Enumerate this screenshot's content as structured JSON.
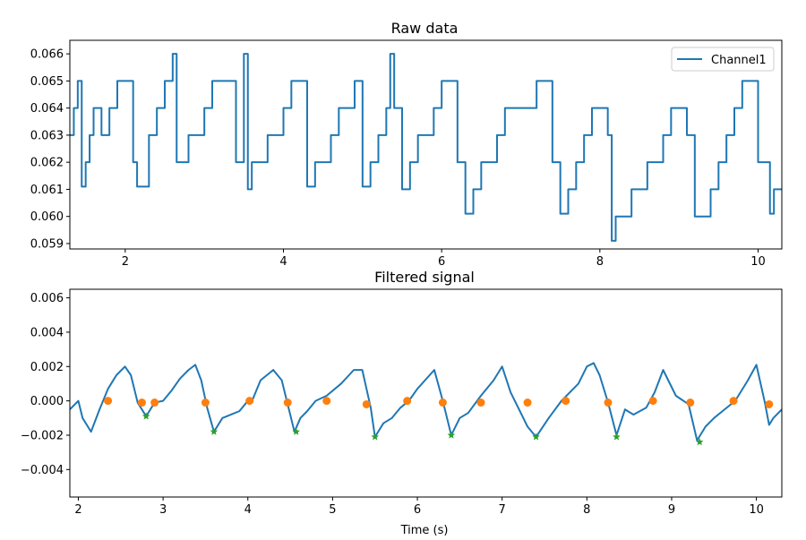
{
  "chart_data": [
    {
      "type": "line",
      "title": "Raw data",
      "xlabel": "",
      "ylabel": "",
      "xlim": [
        1.3,
        10.3
      ],
      "ylim": [
        0.0588,
        0.0665
      ],
      "xticks": [
        2,
        4,
        6,
        8,
        10
      ],
      "yticks": [
        0.059,
        0.06,
        0.061,
        0.062,
        0.063,
        0.064,
        0.065,
        0.066
      ],
      "ytick_labels": [
        "0.059",
        "0.060",
        "0.061",
        "0.062",
        "0.063",
        "0.064",
        "0.065",
        "0.066"
      ],
      "grid": false,
      "legend": "top-right",
      "series": [
        {
          "name": "Channel1",
          "color": "#1f77b4",
          "x": [
            1.3,
            1.35,
            1.4,
            1.45,
            1.5,
            1.55,
            1.6,
            1.7,
            1.8,
            1.9,
            2.0,
            2.1,
            2.15,
            2.3,
            2.4,
            2.5,
            2.55,
            2.6,
            2.65,
            2.7,
            2.8,
            2.9,
            3.0,
            3.1,
            3.2,
            3.3,
            3.4,
            3.5,
            3.55,
            3.6,
            3.7,
            3.8,
            3.9,
            4.0,
            4.1,
            4.2,
            4.3,
            4.4,
            4.5,
            4.6,
            4.7,
            4.8,
            4.9,
            5.0,
            5.1,
            5.2,
            5.3,
            5.35,
            5.4,
            5.5,
            5.6,
            5.7,
            5.8,
            5.9,
            6.0,
            6.1,
            6.2,
            6.3,
            6.4,
            6.5,
            6.6,
            6.7,
            6.8,
            6.9,
            7.0,
            7.1,
            7.2,
            7.3,
            7.4,
            7.5,
            7.6,
            7.7,
            7.8,
            7.9,
            8.0,
            8.1,
            8.15,
            8.2,
            8.3,
            8.4,
            8.5,
            8.6,
            8.7,
            8.8,
            8.9,
            9.0,
            9.1,
            9.2,
            9.3,
            9.4,
            9.5,
            9.6,
            9.7,
            9.8,
            9.9,
            10.0,
            10.1,
            10.15,
            10.2,
            10.3
          ],
          "y": [
            0.063,
            0.064,
            0.065,
            0.0611,
            0.062,
            0.063,
            0.064,
            0.063,
            0.064,
            0.065,
            0.065,
            0.062,
            0.0611,
            0.063,
            0.064,
            0.065,
            0.065,
            0.066,
            0.062,
            0.062,
            0.063,
            0.063,
            0.064,
            0.065,
            0.065,
            0.065,
            0.062,
            0.066,
            0.061,
            0.062,
            0.062,
            0.063,
            0.063,
            0.064,
            0.065,
            0.065,
            0.0611,
            0.062,
            0.062,
            0.063,
            0.064,
            0.064,
            0.065,
            0.0611,
            0.062,
            0.063,
            0.064,
            0.066,
            0.064,
            0.061,
            0.062,
            0.063,
            0.063,
            0.064,
            0.065,
            0.065,
            0.062,
            0.0601,
            0.061,
            0.062,
            0.062,
            0.063,
            0.064,
            0.064,
            0.064,
            0.064,
            0.065,
            0.065,
            0.062,
            0.0601,
            0.061,
            0.062,
            0.063,
            0.064,
            0.064,
            0.063,
            0.0591,
            0.06,
            0.06,
            0.061,
            0.061,
            0.062,
            0.062,
            0.063,
            0.064,
            0.064,
            0.063,
            0.06,
            0.06,
            0.061,
            0.062,
            0.063,
            0.064,
            0.065,
            0.065,
            0.062,
            0.062,
            0.0601,
            0.061,
            0.061
          ]
        }
      ]
    },
    {
      "type": "line",
      "title": "Filtered signal",
      "xlabel": "Time (s)",
      "ylabel": "",
      "xlim": [
        1.9,
        10.3
      ],
      "ylim": [
        -0.0056,
        0.0065
      ],
      "xticks": [
        2,
        3,
        4,
        5,
        6,
        7,
        8,
        9,
        10
      ],
      "yticks": [
        -0.004,
        -0.002,
        0.0,
        0.002,
        0.004,
        0.006
      ],
      "ytick_labels": [
        "−0.004",
        "−0.002",
        "0.000",
        "0.002",
        "0.004",
        "0.006"
      ],
      "grid": false,
      "legend": "none",
      "series": [
        {
          "color": "#1f77b4",
          "x": [
            1.9,
            2.0,
            2.05,
            2.15,
            2.25,
            2.35,
            2.45,
            2.55,
            2.62,
            2.7,
            2.75,
            2.8,
            2.9,
            3.0,
            3.1,
            3.2,
            3.3,
            3.38,
            3.45,
            3.52,
            3.6,
            3.7,
            3.8,
            3.9,
            4.0,
            4.05,
            4.15,
            4.3,
            4.4,
            4.47,
            4.55,
            4.62,
            4.7,
            4.8,
            4.93,
            5.1,
            5.25,
            5.35,
            5.45,
            5.5,
            5.6,
            5.7,
            5.8,
            5.9,
            6.0,
            6.2,
            6.3,
            6.4,
            6.5,
            6.6,
            6.75,
            6.9,
            7.0,
            7.1,
            7.2,
            7.3,
            7.4,
            7.55,
            7.7,
            7.9,
            8.0,
            8.08,
            8.15,
            8.25,
            8.35,
            8.45,
            8.55,
            8.7,
            8.8,
            8.9,
            9.05,
            9.2,
            9.3,
            9.4,
            9.5,
            9.6,
            9.75,
            9.9,
            10.0,
            10.1,
            10.15,
            10.2,
            10.3
          ],
          "y": [
            -0.0005,
            0.0,
            -0.001,
            -0.0018,
            -0.0005,
            0.0007,
            0.0015,
            0.002,
            0.0015,
            -0.0001,
            -0.0005,
            -0.0009,
            -0.0001,
            0.0,
            0.0006,
            0.0013,
            0.0018,
            0.0021,
            0.0012,
            -0.0004,
            -0.0018,
            -0.001,
            -0.0008,
            -0.0006,
            0.0,
            0.0,
            0.0012,
            0.0018,
            0.0012,
            -0.0002,
            -0.0018,
            -0.001,
            -0.0006,
            0.0,
            0.0003,
            0.001,
            0.0018,
            0.0018,
            -0.0004,
            -0.0021,
            -0.0013,
            -0.001,
            -0.0004,
            0.0,
            0.0007,
            0.0018,
            0.0,
            -0.002,
            -0.001,
            -0.0007,
            0.0003,
            0.0012,
            0.002,
            0.0005,
            -0.0005,
            -0.0015,
            -0.0021,
            -0.001,
            0.0,
            0.001,
            0.002,
            0.0022,
            0.0015,
            -0.0001,
            -0.002,
            -0.0005,
            -0.0008,
            -0.0004,
            0.0005,
            0.0018,
            0.0003,
            -0.0002,
            -0.0023,
            -0.0015,
            -0.001,
            -0.0006,
            0.0,
            0.0012,
            0.0021,
            -0.0001,
            -0.0014,
            -0.001,
            -0.0005
          ]
        },
        {
          "marker": "circle",
          "color": "#ff7f0e",
          "x": [
            2.35,
            2.75,
            2.9,
            3.5,
            4.02,
            4.47,
            4.93,
            5.4,
            5.88,
            6.3,
            6.75,
            7.3,
            7.75,
            8.25,
            8.78,
            9.22,
            9.73,
            10.15
          ],
          "y": [
            0.0,
            -0.0001,
            -0.0001,
            -0.0001,
            0.0,
            -0.0001,
            0.0,
            -0.0002,
            0.0,
            -0.0001,
            -0.0001,
            -0.0001,
            0.0,
            -0.0001,
            0.0,
            -0.0001,
            0.0,
            -0.0002
          ]
        },
        {
          "marker": "star",
          "color": "#2ca02c",
          "x": [
            2.8,
            3.6,
            4.57,
            5.5,
            6.4,
            7.4,
            8.35,
            9.33
          ],
          "y": [
            -0.0009,
            -0.0018,
            -0.0018,
            -0.0021,
            -0.002,
            -0.0021,
            -0.0021,
            -0.0024
          ]
        }
      ]
    }
  ]
}
